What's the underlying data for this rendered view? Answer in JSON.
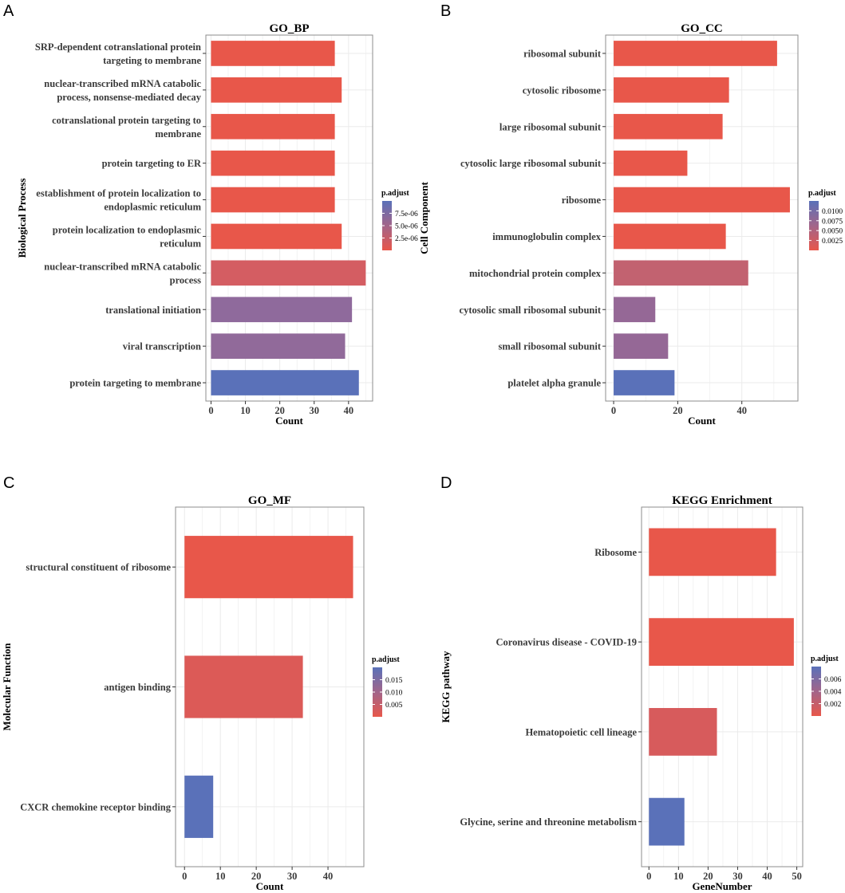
{
  "chart_data": [
    {
      "panel": "A",
      "type": "bar",
      "orientation": "horizontal",
      "title": "GO_BP",
      "xlabel": "Count",
      "ylabel": "Biological Process",
      "xlim": [
        -1.5,
        47
      ],
      "xticks": [
        0,
        10,
        20,
        30,
        40
      ],
      "categories": [
        [
          "SRP-dependent cotranslational protein",
          "targeting to membrane"
        ],
        [
          "nuclear-transcribed mRNA catabolic",
          "process, nonsense-mediated decay"
        ],
        [
          "cotranslational protein targeting to",
          "membrane"
        ],
        [
          "protein targeting to ER"
        ],
        [
          "establishment of protein localization to",
          "endoplasmic reticulum"
        ],
        [
          "protein localization to endoplasmic",
          "reticulum"
        ],
        [
          "nuclear-transcribed mRNA catabolic",
          "process"
        ],
        [
          "translational initiation"
        ],
        [
          "viral transcription"
        ],
        [
          "protein targeting to membrane"
        ]
      ],
      "values": [
        36,
        38,
        36,
        36,
        36,
        38,
        45,
        41,
        39,
        43
      ],
      "colors": [
        "#e8574a",
        "#e8574a",
        "#e8574a",
        "#e8574a",
        "#e8574a",
        "#e8574a",
        "#d45d62",
        "#8f6a9c",
        "#916a9a",
        "#5a71b9"
      ],
      "legend": {
        "title": "p.adjust",
        "labels": [
          "7.5e-06",
          "5.0e-06",
          "2.5e-06"
        ]
      }
    },
    {
      "panel": "B",
      "type": "bar",
      "orientation": "horizontal",
      "title": "GO_CC",
      "xlabel": "Count",
      "ylabel": "Cell Component",
      "xlim": [
        -2.5,
        57.5
      ],
      "xticks": [
        0,
        20,
        40
      ],
      "categories": [
        [
          "ribosomal subunit"
        ],
        [
          "cytosolic ribosome"
        ],
        [
          "large ribosomal subunit"
        ],
        [
          "cytosolic large ribosomal subunit"
        ],
        [
          "ribosome"
        ],
        [
          "immunoglobulin complex"
        ],
        [
          "mitochondrial protein complex"
        ],
        [
          "cytosolic small ribosomal subunit"
        ],
        [
          "small ribosomal subunit"
        ],
        [
          "platelet alpha granule"
        ]
      ],
      "values": [
        51,
        36,
        34,
        23,
        55,
        35,
        42,
        13,
        17,
        19
      ],
      "colors": [
        "#e8574a",
        "#e8574a",
        "#e8574a",
        "#e8574a",
        "#e8574a",
        "#e8574a",
        "#c26270",
        "#956896",
        "#956896",
        "#5a71b9"
      ],
      "legend": {
        "title": "p.adjust",
        "labels": [
          "0.0100",
          "0.0075",
          "0.0050",
          "0.0025"
        ]
      }
    },
    {
      "panel": "C",
      "type": "bar",
      "orientation": "horizontal",
      "title": "GO_MF",
      "xlabel": "Count",
      "ylabel": "Molecular Function",
      "xlim": [
        -2.5,
        50
      ],
      "xticks": [
        0,
        10,
        20,
        30,
        40
      ],
      "categories": [
        [
          "structural constituent of ribosome"
        ],
        [
          "antigen binding"
        ],
        [
          "CXCR chemokine receptor binding"
        ]
      ],
      "values": [
        47,
        33,
        8
      ],
      "colors": [
        "#e8574a",
        "#dc5a57",
        "#5a71b9"
      ],
      "legend": {
        "title": "p.adjust",
        "labels": [
          "0.015",
          "0.010",
          "0.005"
        ]
      }
    },
    {
      "panel": "D",
      "type": "bar",
      "orientation": "horizontal",
      "title": "KEGG Enrichment",
      "xlabel": "GeneNumber",
      "ylabel": "KEGG pathway",
      "xlim": [
        -2.5,
        52
      ],
      "xticks": [
        0,
        10,
        20,
        30,
        40,
        50
      ],
      "categories": [
        [
          "Ribosome"
        ],
        [
          "Coronavirus disease - COVID-19"
        ],
        [
          "Hematopoietic cell lineage"
        ],
        [
          "Glycine, serine and threonine metabolism"
        ]
      ],
      "values": [
        43,
        49,
        23,
        12
      ],
      "colors": [
        "#e8574a",
        "#e8574a",
        "#d75b5c",
        "#5a71b9"
      ],
      "legend": {
        "title": "p.adjust",
        "labels": [
          "0.006",
          "0.004",
          "0.002"
        ]
      }
    }
  ],
  "colors": {
    "high_p": "#5a71b9",
    "low_p": "#e8574a",
    "grid": "#ebebeb",
    "frame": "#8c8c8c"
  }
}
